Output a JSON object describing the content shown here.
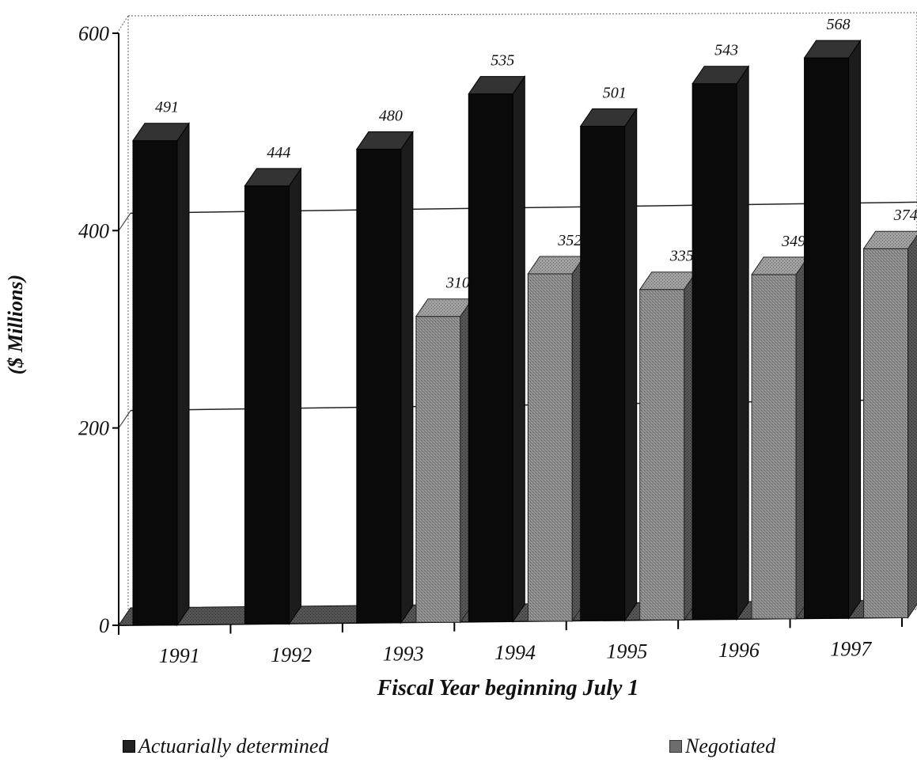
{
  "chart_data": {
    "type": "bar",
    "title": "",
    "xlabel": "Fiscal Year beginning July 1",
    "ylabel": "($ Millions)",
    "ylim": [
      0,
      600
    ],
    "yticks": [
      0,
      200,
      400,
      600
    ],
    "categories": [
      "1991",
      "1992",
      "1993",
      "1994",
      "1995",
      "1996",
      "1997"
    ],
    "series": [
      {
        "name": "Actuarially determined",
        "color": "#0d0d0d",
        "values": [
          491,
          444,
          480,
          535,
          501,
          543,
          568
        ]
      },
      {
        "name": "Negotiated",
        "color": "#7a7a7a",
        "values": [
          null,
          null,
          310,
          352,
          335,
          349,
          374
        ]
      }
    ],
    "grid": true,
    "legend_position": "bottom",
    "style": "3d-clustered-column"
  }
}
